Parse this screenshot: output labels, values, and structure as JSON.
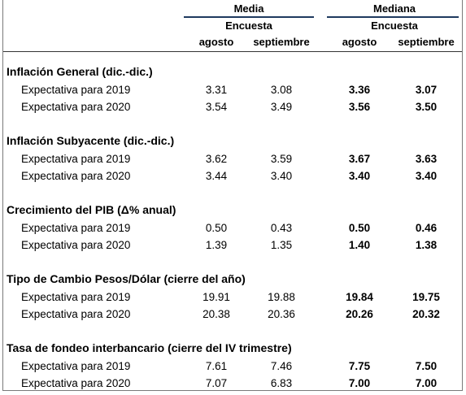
{
  "header": {
    "media": "Media",
    "mediana": "Mediana",
    "encuesta_media": "Encuesta",
    "encuesta_mediana": "Encuesta",
    "months_media": [
      "agosto",
      "septiembre"
    ],
    "months_mediana": [
      "agosto",
      "septiembre"
    ]
  },
  "sections": [
    {
      "title": "Inflación General (dic.-dic.)",
      "rows": [
        {
          "label": "Expectativa para 2019",
          "media_ago": "3.31",
          "media_sep": "3.08",
          "mediana_ago": "3.36",
          "mediana_sep": "3.07"
        },
        {
          "label": "Expectativa para 2020",
          "media_ago": "3.54",
          "media_sep": "3.49",
          "mediana_ago": "3.56",
          "mediana_sep": "3.50"
        }
      ]
    },
    {
      "title": "Inflación Subyacente (dic.-dic.)",
      "rows": [
        {
          "label": "Expectativa para 2019",
          "media_ago": "3.62",
          "media_sep": "3.59",
          "mediana_ago": "3.67",
          "mediana_sep": "3.63"
        },
        {
          "label": "Expectativa para 2020",
          "media_ago": "3.44",
          "media_sep": "3.40",
          "mediana_ago": "3.40",
          "mediana_sep": "3.40"
        }
      ]
    },
    {
      "title": "Crecimiento del PIB (Δ% anual)",
      "rows": [
        {
          "label": "Expectativa para 2019",
          "media_ago": "0.50",
          "media_sep": "0.43",
          "mediana_ago": "0.50",
          "mediana_sep": "0.46"
        },
        {
          "label": "Expectativa para 2020",
          "media_ago": "1.39",
          "media_sep": "1.35",
          "mediana_ago": "1.40",
          "mediana_sep": "1.38"
        }
      ]
    },
    {
      "title": "Tipo de Cambio Pesos/Dólar (cierre del año)",
      "rows": [
        {
          "label": "Expectativa para 2019",
          "media_ago": "19.91",
          "media_sep": "19.88",
          "mediana_ago": "19.84",
          "mediana_sep": "19.75"
        },
        {
          "label": "Expectativa para 2020",
          "media_ago": "20.38",
          "media_sep": "20.36",
          "mediana_ago": "20.26",
          "mediana_sep": "20.32"
        }
      ]
    },
    {
      "title": "Tasa de fondeo interbancario (cierre del IV trimestre)",
      "rows": [
        {
          "label": "Expectativa para 2019",
          "media_ago": "7.61",
          "media_sep": "7.46",
          "mediana_ago": "7.75",
          "mediana_sep": "7.50"
        },
        {
          "label": "Expectativa para 2020",
          "media_ago": "7.07",
          "media_sep": "6.83",
          "mediana_ago": "7.00",
          "mediana_sep": "7.00"
        }
      ]
    }
  ]
}
